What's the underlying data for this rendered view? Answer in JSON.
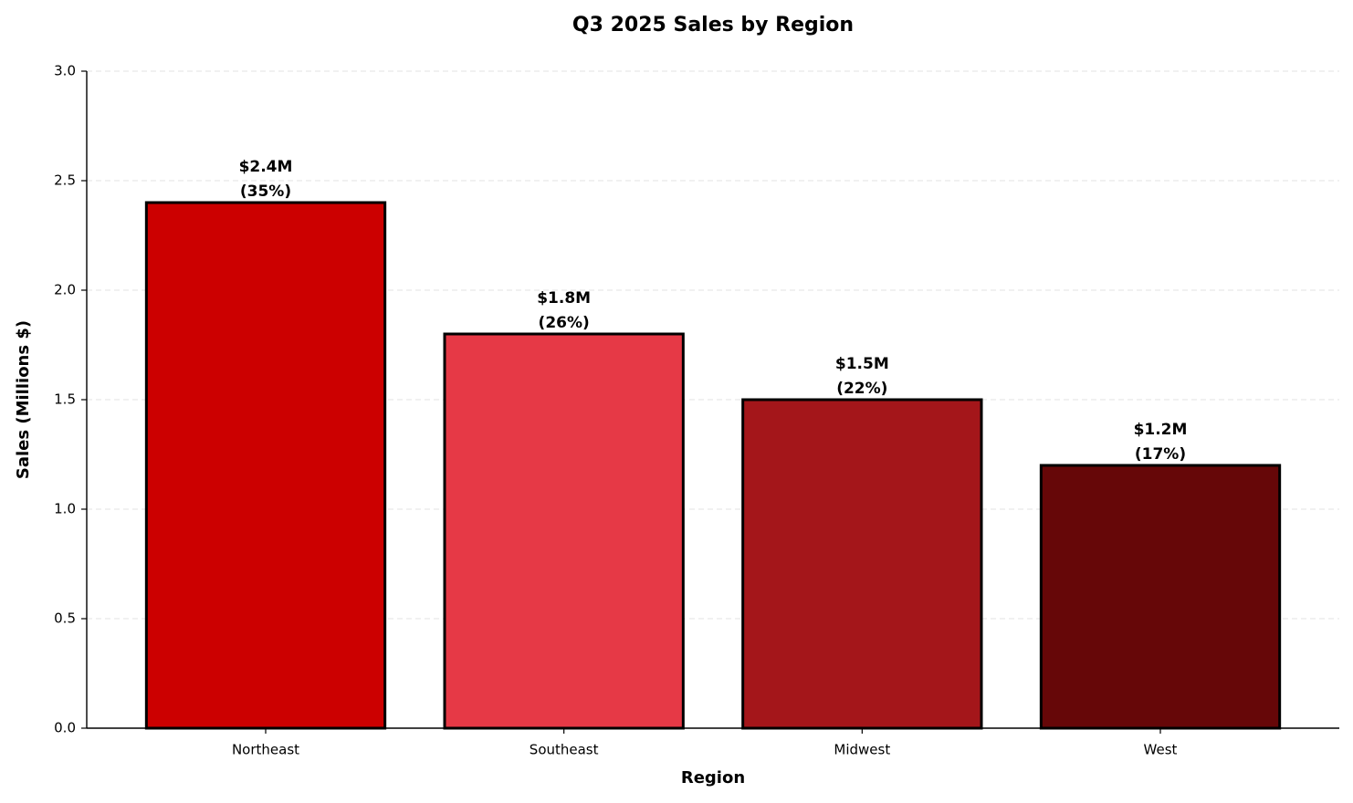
{
  "chart_data": {
    "type": "bar",
    "title": "Q3 2025 Sales by Region",
    "x_label": "Region",
    "y_label": "Sales (Millions $)",
    "categories": [
      "Northeast",
      "Southeast",
      "Midwest",
      "West"
    ],
    "values": [
      2.4,
      1.8,
      1.5,
      1.2
    ],
    "value_labels": [
      "$2.4M",
      "$1.8M",
      "$1.5M",
      "$1.2M"
    ],
    "shares": [
      35,
      26,
      22,
      17
    ],
    "share_labels": [
      "(35%)",
      "(26%)",
      "(22%)",
      "(17%)"
    ],
    "colors": [
      "#cc0000",
      "#e63946",
      "#a4161a",
      "#660708"
    ],
    "edge_color": "#000000",
    "ylim": [
      0,
      3.0
    ],
    "yticks": [
      {
        "value": 0,
        "label": "0.0"
      },
      {
        "value": 0.5,
        "label": "0.5"
      },
      {
        "value": 1,
        "label": "1.0"
      },
      {
        "value": 1.5,
        "label": "1.5"
      },
      {
        "value": 2,
        "label": "2.0"
      },
      {
        "value": 2.5,
        "label": "2.5"
      },
      {
        "value": 3,
        "label": "3.0"
      }
    ],
    "grid": true
  }
}
